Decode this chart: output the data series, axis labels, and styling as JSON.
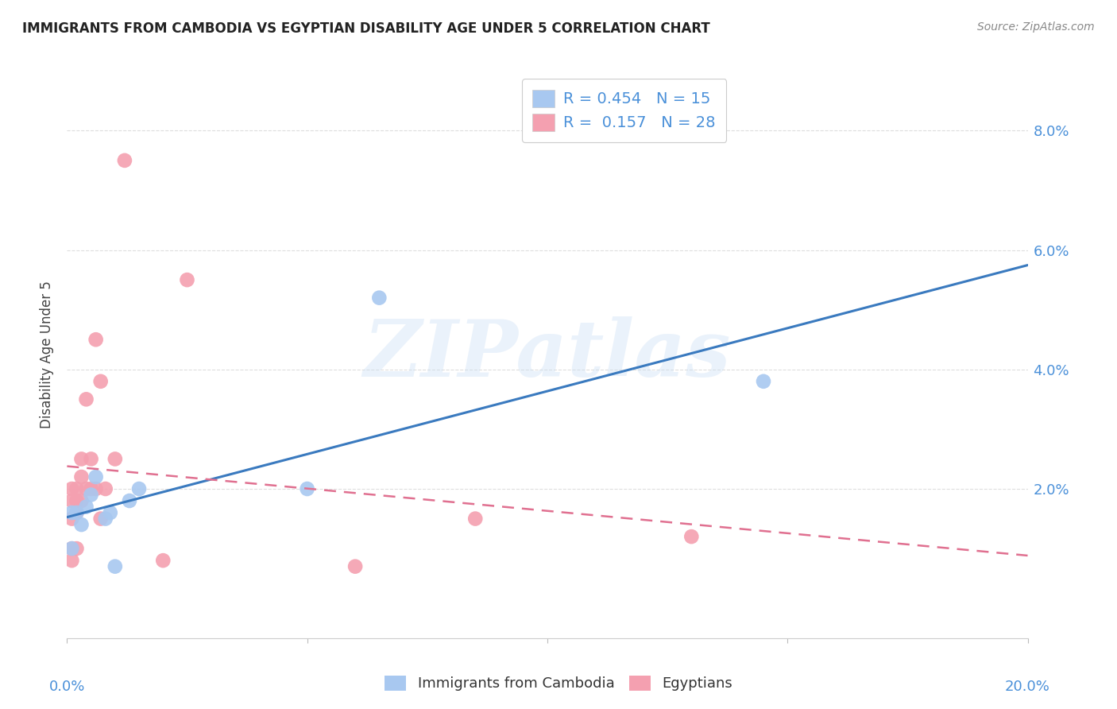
{
  "title": "IMMIGRANTS FROM CAMBODIA VS EGYPTIAN DISABILITY AGE UNDER 5 CORRELATION CHART",
  "source": "Source: ZipAtlas.com",
  "ylabel": "Disability Age Under 5",
  "xlim": [
    0.0,
    0.2
  ],
  "ylim": [
    -0.005,
    0.09
  ],
  "yticks": [
    0.0,
    0.02,
    0.04,
    0.06,
    0.08
  ],
  "ytick_labels": [
    "",
    "2.0%",
    "4.0%",
    "6.0%",
    "8.0%"
  ],
  "xticks": [
    0.0,
    0.05,
    0.1,
    0.15,
    0.2
  ],
  "cambodia_color": "#a8c8f0",
  "egypt_color": "#f4a0b0",
  "trend_cambodia_color": "#3a7abf",
  "trend_egypt_color": "#e07090",
  "R_cambodia": 0.454,
  "N_cambodia": 15,
  "R_egypt": 0.157,
  "N_egypt": 28,
  "watermark": "ZIPatlas",
  "cambodia_x": [
    0.001,
    0.001,
    0.002,
    0.003,
    0.004,
    0.005,
    0.006,
    0.008,
    0.009,
    0.01,
    0.013,
    0.015,
    0.05,
    0.065,
    0.145
  ],
  "cambodia_y": [
    0.01,
    0.016,
    0.016,
    0.014,
    0.017,
    0.019,
    0.022,
    0.015,
    0.016,
    0.007,
    0.018,
    0.02,
    0.02,
    0.052,
    0.038
  ],
  "egypt_x": [
    0.001,
    0.001,
    0.001,
    0.001,
    0.001,
    0.002,
    0.002,
    0.002,
    0.002,
    0.003,
    0.003,
    0.003,
    0.004,
    0.004,
    0.005,
    0.005,
    0.006,
    0.006,
    0.007,
    0.007,
    0.008,
    0.01,
    0.012,
    0.02,
    0.025,
    0.06,
    0.085,
    0.13
  ],
  "egypt_y": [
    0.008,
    0.01,
    0.015,
    0.018,
    0.02,
    0.01,
    0.016,
    0.018,
    0.02,
    0.018,
    0.022,
    0.025,
    0.02,
    0.035,
    0.02,
    0.025,
    0.02,
    0.045,
    0.015,
    0.038,
    0.02,
    0.025,
    0.075,
    0.008,
    0.055,
    0.007,
    0.015,
    0.012
  ],
  "legend_label_cambodia": "Immigrants from Cambodia",
  "legend_label_egypt": "Egyptians",
  "marker_size": 180,
  "legend_fontsize": 14,
  "tick_fontsize": 13,
  "ylabel_fontsize": 12,
  "title_fontsize": 12
}
